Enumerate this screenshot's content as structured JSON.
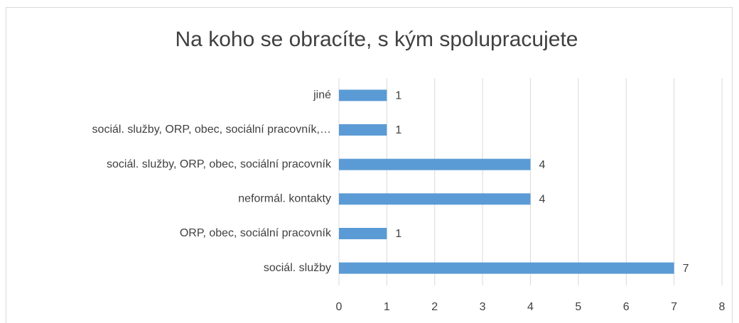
{
  "chart_data": {
    "type": "bar",
    "orientation": "horizontal",
    "title": "Na koho se obracíte, s kým spolupracujete",
    "categories": [
      "jiné",
      "sociál. služby, ORP, obec, sociální pracovník,…",
      "sociál. služby, ORP, obec, sociální pracovník",
      "neformál. kontakty",
      "ORP, obec, sociální pracovník",
      "sociál. služby"
    ],
    "values": [
      1,
      1,
      4,
      4,
      1,
      7
    ],
    "color": "#5b9bd5",
    "xlim": [
      0,
      8
    ],
    "xticks": [
      0,
      1,
      2,
      3,
      4,
      5,
      6,
      7,
      8
    ],
    "grid": true
  }
}
